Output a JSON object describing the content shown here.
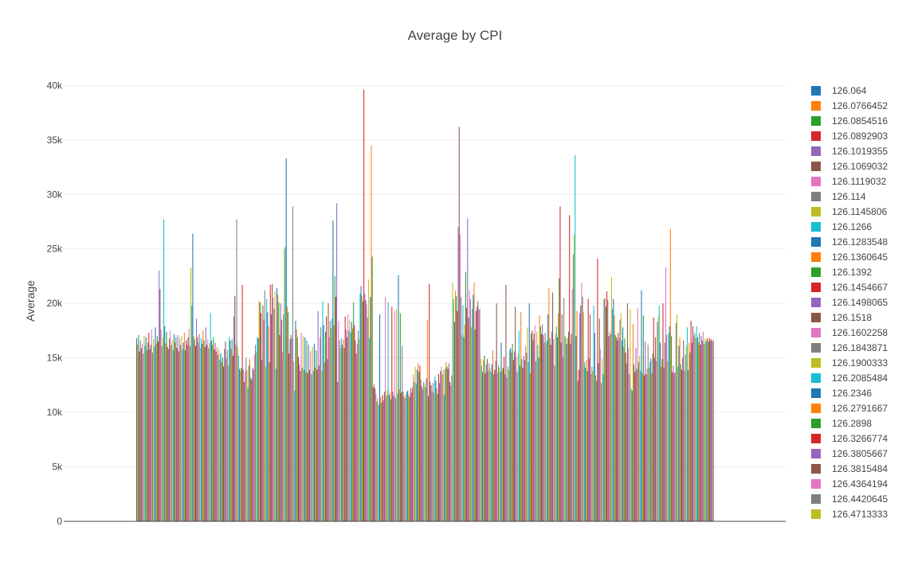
{
  "chart_data": {
    "type": "bar",
    "title": "Average by CPI",
    "xlabel": "",
    "ylabel": "Average",
    "ylim": [
      0,
      42000
    ],
    "y_ticks": [
      0,
      5000,
      10000,
      15000,
      20000,
      25000,
      30000,
      35000,
      40000
    ],
    "y_tick_labels": [
      "0",
      "5k",
      "10k",
      "15k",
      "20k",
      "25k",
      "30k",
      "35k",
      "40k"
    ],
    "grid": true,
    "legend_position": "right",
    "palette": [
      "#1f77b4",
      "#ff7f0e",
      "#2ca02c",
      "#d62728",
      "#9467bd",
      "#8c564b",
      "#e377c2",
      "#7f7f7f",
      "#bcbd22",
      "#17becf"
    ],
    "categories_visible": false,
    "series_names": [
      "126.064",
      "126.0766452",
      "126.0854516",
      "126.0892903",
      "126.1019355",
      "126.1069032",
      "126.1119032",
      "126.114",
      "126.1145806",
      "126.1266",
      "126.1283548",
      "126.1360645",
      "126.1392",
      "126.1454667",
      "126.1498065",
      "126.1518",
      "126.1602258",
      "126.1843871",
      "126.1900333",
      "126.2085484",
      "126.2346",
      "126.2791667",
      "126.2898",
      "126.3266774",
      "126.3805667",
      "126.3815484",
      "126.4364194",
      "126.4420645",
      "126.4713333"
    ],
    "values": [
      16800,
      16200,
      17100,
      15600,
      16600,
      15900,
      16300,
      15400,
      17000,
      16100,
      16900,
      15700,
      16400,
      17300,
      15800,
      16200,
      17600,
      15500,
      16700,
      16000,
      17800,
      16300,
      17000,
      16500,
      23000,
      21300,
      17600,
      16100,
      16900,
      27700,
      17900,
      16300,
      17400,
      16000,
      15800,
      16800,
      17500,
      16200,
      16600,
      15700,
      17200,
      16400,
      16900,
      15900,
      17100,
      15600,
      16800,
      16200,
      17000,
      15800,
      16400,
      17300,
      15700,
      16600,
      16200,
      16900,
      17700,
      16100,
      23300,
      19800,
      26400,
      17000,
      16700,
      16100,
      18600,
      16900,
      16400,
      17200,
      15900,
      16800,
      16300,
      17500,
      16600,
      16000,
      17800,
      16200,
      16700,
      15900,
      16400,
      19100,
      16600,
      16200,
      16900,
      15800,
      16400,
      15600,
      16000,
      15300,
      15800,
      14800,
      15400,
      14600,
      15000,
      14200,
      15800,
      16500,
      14900,
      15700,
      14300,
      16900,
      16600,
      15800,
      16700,
      15200,
      18800,
      20700,
      16200,
      27700,
      16000,
      15200,
      14000,
      13800,
      14100,
      21700,
      13900,
      12800,
      13700,
      15000,
      13900,
      12200,
      14300,
      14900,
      13200,
      13000,
      14100,
      13900,
      15300,
      16200,
      15600,
      16900,
      16800,
      20200,
      20100,
      19100,
      14800,
      19800,
      18500,
      21200,
      14200,
      20400,
      19200,
      17900,
      14600,
      21700,
      19000,
      21800,
      20500,
      19500,
      21100,
      14000,
      21400,
      20800,
      20100,
      17100,
      20000,
      18500,
      15500,
      19000,
      25000,
      25200,
      33300,
      19700,
      19200,
      15400,
      16700,
      17100,
      16800,
      28900,
      14700,
      12000,
      18400,
      17600,
      16900,
      15100,
      14400,
      13800,
      17300,
      14100,
      17000,
      13900,
      16900,
      13700,
      16600,
      13600,
      16200,
      13900,
      15600,
      13500,
      16000,
      13800,
      16300,
      14100,
      15700,
      13900,
      19300,
      14300,
      16900,
      17800,
      13800,
      20200,
      18000,
      14600,
      17400,
      18800,
      14900,
      20000,
      16900,
      18400,
      17700,
      18600,
      27600,
      18000,
      22500,
      20600,
      29200,
      12800,
      18400,
      16600,
      15900,
      16800,
      16200,
      16700,
      15900,
      18800,
      17600,
      16900,
      19000,
      17500,
      18500,
      17300,
      18300,
      17700,
      20100,
      18000,
      16600,
      15400,
      16300,
      17500,
      16700,
      20900,
      21600,
      20700,
      20200,
      39600,
      20900,
      20300,
      19900,
      18700,
      22200,
      16800,
      20600,
      34500,
      24300,
      12300,
      12600,
      12200,
      11700,
      11000,
      11300,
      10700,
      19000,
      11400,
      10900,
      11600,
      11100,
      11900,
      20600,
      11500,
      12000,
      20100,
      11600,
      11800,
      11200,
      19700,
      11900,
      11500,
      19300,
      11300,
      19500,
      11700,
      22600,
      12100,
      19100,
      11800,
      16100,
      11900,
      11500,
      11300,
      11700,
      11900,
      12000,
      11600,
      11400,
      12200,
      11800,
      12300,
      13500,
      12800,
      14200,
      12600,
      13900,
      14500,
      13700,
      14300,
      13000,
      12400,
      12100,
      12800,
      12600,
      12300,
      13100,
      18500,
      11500,
      21800,
      12800,
      12500,
      11900,
      12700,
      11800,
      13300,
      12900,
      12200,
      11700,
      13500,
      12700,
      13800,
      14200,
      13500,
      13900,
      11600,
      14000,
      14600,
      14200,
      14000,
      14500,
      12800,
      12500,
      13400,
      21900,
      20400,
      18300,
      21200,
      20700,
      19300,
      27000,
      36200,
      26300,
      20600,
      17100,
      19800,
      16900,
      18100,
      22900,
      19600,
      27800,
      18700,
      21200,
      20400,
      17800,
      19500,
      20800,
      21900,
      17600,
      19300,
      19700,
      20200,
      19400,
      19500,
      14900,
      14300,
      13700,
      14800,
      15200,
      13600,
      14400,
      14900,
      13800,
      14500,
      14100,
      13700,
      14400,
      15700,
      13500,
      13900,
      14700,
      20000,
      13600,
      14300,
      14100,
      13700,
      16400,
      13900,
      14100,
      15100,
      13500,
      21700,
      13200,
      14200,
      13900,
      15700,
      15900,
      15500,
      16300,
      14800,
      15600,
      19700,
      15100,
      13700,
      15400,
      17500,
      14300,
      19200,
      14900,
      14100,
      15200,
      14800,
      16100,
      15500,
      17800,
      14600,
      20000,
      13600,
      17200,
      17500,
      16600,
      17200,
      18000,
      14700,
      17400,
      16200,
      15000,
      18900,
      17900,
      17200,
      18100,
      17100,
      16400,
      17300,
      16400,
      16600,
      19000,
      21400,
      16800,
      16200,
      17400,
      21000,
      16700,
      14300,
      17200,
      17900,
      16900,
      19100,
      22300,
      28900,
      16400,
      19000,
      15100,
      20500,
      17000,
      16900,
      16300,
      16800,
      17400,
      28100,
      16300,
      17200,
      21300,
      24500,
      26300,
      33600,
      17000,
      19300,
      12900,
      13900,
      19100,
      19800,
      21900,
      20600,
      19200,
      14600,
      14100,
      14800,
      13800,
      20400,
      14900,
      19000,
      13500,
      14200,
      13800,
      19800,
      17300,
      13400,
      12900,
      24100,
      14500,
      18600,
      15800,
      12700,
      14900,
      13500,
      20400,
      20500,
      19700,
      21100,
      20300,
      17000,
      17400,
      17200,
      22400,
      19500,
      20400,
      18900,
      17100,
      16900,
      16600,
      17300,
      16800,
      18500,
      19100,
      16600,
      17800,
      16000,
      16800,
      15500,
      14500,
      20000,
      15900,
      13500,
      19500,
      12200,
      12000,
      18100,
      14400,
      13700,
      15900,
      14000,
      19600,
      14600,
      15200,
      13800,
      21200,
      13600,
      18900,
      13400,
      16500,
      13500,
      14000,
      16200,
      14100,
      14600,
      14900,
      13600,
      15400,
      18700,
      15000,
      16900,
      14700,
      18300,
      18800,
      19800,
      16400,
      14200,
      14900,
      20000,
      14100,
      16400,
      23300,
      17100,
      14700,
      17300,
      17900,
      26800,
      17000,
      13700,
      14300,
      13600,
      13700,
      18200,
      19000,
      14200,
      16100,
      16900,
      14400,
      13900,
      15000,
      16600,
      13800,
      15300,
      16100,
      17800,
      13900,
      16400,
      15500,
      18400,
      16400,
      17900,
      17000,
      17300,
      16800,
      17900,
      16900,
      16400,
      17300,
      16200,
      17000,
      16600,
      17400,
      16300,
      16800,
      16500,
      16700,
      16900,
      16500,
      16800,
      16600,
      16700,
      16500,
      16600
    ]
  }
}
